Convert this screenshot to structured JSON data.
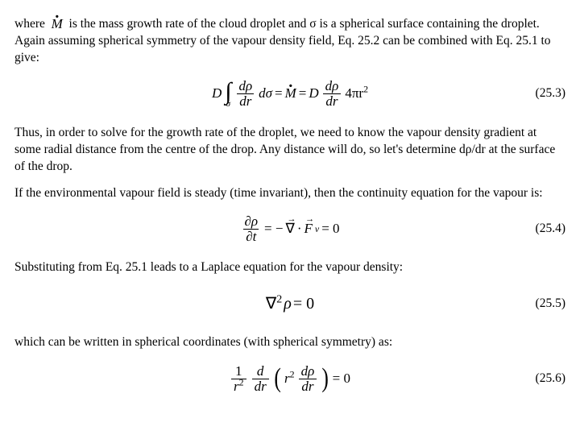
{
  "para1_a": "where",
  "mdot": "M",
  "para1_b": " is the mass growth rate of the cloud droplet and σ is a spherical surface containing the droplet. Again assuming spherical symmetry of the vapour density field, Eq. 25.2 can be combined with Eq. 25.1 to give:",
  "eq253": {
    "D": "D",
    "drho": "dρ",
    "dr": "dr",
    "dsigma": "dσ",
    "eq": " = ",
    "Mdot": "M",
    "eq2": " = ",
    "D2": "D",
    "fourpir2": "4πr",
    "sq": "2",
    "num": "(25.3)"
  },
  "para2": "Thus, in order to solve for the growth rate of the droplet, we need to know the vapour density gradient at some radial distance from the centre of the drop. Any distance will do, so let's determine dρ/dr at the surface of the drop.",
  "para3": "If the environmental vapour field is steady (time invariant), then the continuity equation for the vapour is:",
  "eq254": {
    "partialrho": "∂ρ",
    "partialt": "∂t",
    "eq": " = −",
    "nabla": "∇",
    "dot": " · ",
    "F": "F",
    "sub": "v",
    "eq0": " = 0",
    "num": "(25.4)"
  },
  "para4": "Substituting from Eq. 25.1 leads to a Laplace equation for the vapour density:",
  "eq255": {
    "lhs": "∇",
    "sq": "2",
    "rho": "ρ",
    "eq0": " = 0",
    "num": "(25.5)"
  },
  "para5": "which can be written in spherical coordinates (with spherical symmetry) as:",
  "eq256": {
    "one": "1",
    "r2a": "r",
    "sq": "2",
    "d": "d",
    "dr": "dr",
    "r2b": "r",
    "drho": "dρ",
    "eq0": " = 0",
    "num": "(25.6)"
  }
}
